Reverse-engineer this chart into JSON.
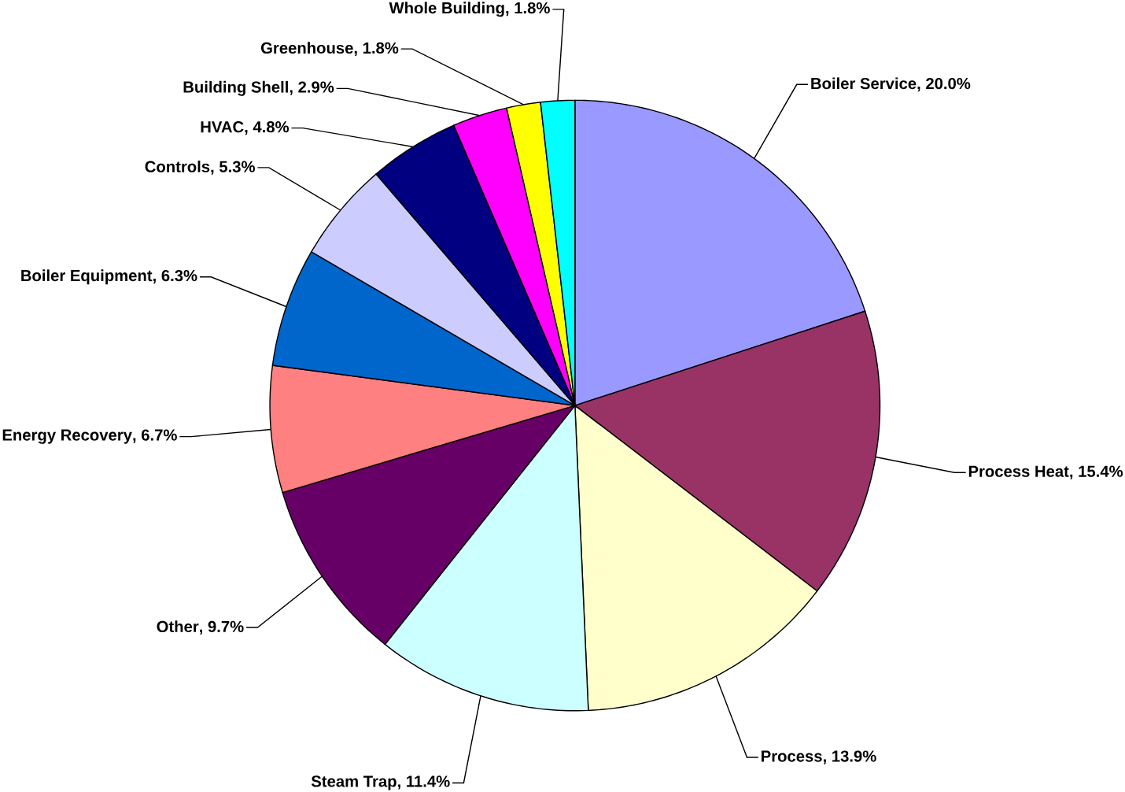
{
  "chart_data": {
    "type": "pie",
    "categories": [
      "Boiler Service",
      "Process Heat",
      "Process",
      "Steam Trap",
      "Other",
      "Energy Recovery",
      "Boiler Equipment",
      "Controls",
      "HVAC",
      "Building Shell",
      "Greenhouse",
      "Whole Building"
    ],
    "values": [
      20.0,
      15.4,
      13.9,
      11.4,
      9.7,
      6.7,
      6.3,
      5.3,
      4.8,
      2.9,
      1.8,
      1.8
    ],
    "value_labels": [
      ", 20.0%",
      ", 15.4%",
      ", 13.9%",
      ", 11.4%",
      ", 9.7%",
      ", 6.7%",
      ", 6.3%",
      ", 5.3%",
      ", 4.8%",
      ", 2.9%",
      ", 1.8%",
      ", 1.8%"
    ],
    "colors": [
      "#9999ff",
      "#993366",
      "#ffffcc",
      "#ccffff",
      "#660066",
      "#ff8080",
      "#0066cc",
      "#ccccff",
      "#000080",
      "#ff00ff",
      "#ffff00",
      "#00ffff"
    ]
  }
}
